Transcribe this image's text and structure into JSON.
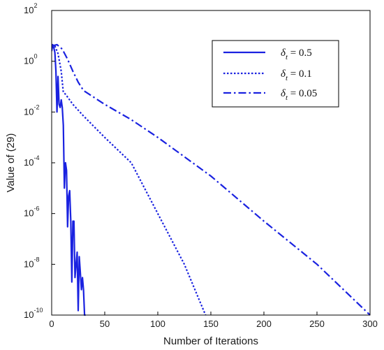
{
  "chart_data": {
    "type": "line",
    "title": "",
    "xlabel": "Number of Iterations",
    "ylabel": "Value of (29)",
    "xlim": [
      0,
      300
    ],
    "ylim": [
      1e-10,
      100
    ],
    "y_scale": "log",
    "grid": false,
    "legend_position": "top-right",
    "color": "#1a22e0",
    "x_ticks": [
      {
        "value": 0,
        "label": "0"
      },
      {
        "value": 50,
        "label": "50"
      },
      {
        "value": 100,
        "label": "100"
      },
      {
        "value": 150,
        "label": "150"
      },
      {
        "value": 200,
        "label": "200"
      },
      {
        "value": 250,
        "label": "250"
      },
      {
        "value": 300,
        "label": "300"
      }
    ],
    "y_ticks": [
      {
        "value": 1e-10,
        "base": "10",
        "exp": "-10"
      },
      {
        "value": 1e-08,
        "base": "10",
        "exp": "-8"
      },
      {
        "value": 1e-06,
        "base": "10",
        "exp": "-6"
      },
      {
        "value": 0.0001,
        "base": "10",
        "exp": "-4"
      },
      {
        "value": 0.01,
        "base": "10",
        "exp": "-2"
      },
      {
        "value": 1,
        "base": "10",
        "exp": "0"
      },
      {
        "value": 100,
        "base": "10",
        "exp": "2"
      }
    ],
    "series": [
      {
        "name": "δt = 0.5",
        "legend_symbol": "δ",
        "legend_sub": "t",
        "legend_value": " = 0.5",
        "dash": "solid",
        "x": [
          0,
          1,
          2,
          3,
          4,
          5,
          6,
          7,
          8,
          9,
          10,
          11,
          12,
          13,
          14,
          15,
          16,
          17,
          18,
          19,
          20,
          21,
          22,
          23,
          24,
          25,
          26,
          27,
          28,
          29,
          30,
          31,
          32
        ],
        "y": [
          2.5,
          4.5,
          3.5,
          2.2,
          0.4,
          0.01,
          0.25,
          0.02,
          0.015,
          0.03,
          0.015,
          0.003,
          1e-05,
          0.0001,
          5e-05,
          3e-07,
          5e-06,
          8e-06,
          5e-07,
          2e-09,
          5e-07,
          5e-07,
          3e-09,
          1e-08,
          3e-08,
          1.5e-10,
          2e-08,
          5e-09,
          1e-09,
          3e-09,
          1e-09,
          1e-10,
          1e-10
        ]
      },
      {
        "name": "δt = 0.1",
        "legend_symbol": "δ",
        "legend_sub": "t",
        "legend_value": " = 0.1",
        "dash": "dotted",
        "x": [
          0,
          3,
          6,
          9,
          11,
          13,
          20,
          30,
          50,
          75,
          100,
          125,
          145
        ],
        "y": [
          3.5,
          4.0,
          2.0,
          0.4,
          0.06,
          0.05,
          0.02,
          0.007,
          0.001,
          0.0001,
          1e-06,
          1e-08,
          1e-10
        ]
      },
      {
        "name": "δt = 0.05",
        "legend_symbol": "δ",
        "legend_sub": "t",
        "legend_value": " = 0.05",
        "dash": "dashdot",
        "x": [
          0,
          5,
          10,
          15,
          20,
          25,
          30,
          50,
          75,
          100,
          150,
          200,
          250,
          300
        ],
        "y": [
          4.0,
          4.5,
          3.0,
          1.2,
          0.4,
          0.15,
          0.07,
          0.02,
          0.005,
          0.001,
          3e-05,
          5e-07,
          1e-08,
          1e-10
        ]
      }
    ]
  }
}
